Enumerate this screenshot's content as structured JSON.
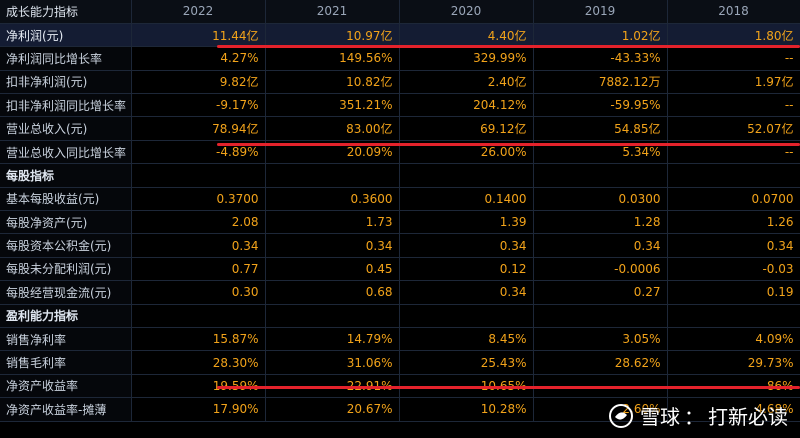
{
  "header": {
    "label": "成长能力指标",
    "years": [
      "2022",
      "2021",
      "2020",
      "2019",
      "2018"
    ]
  },
  "rows": [
    {
      "label": "净利润(元)",
      "values": [
        "11.44亿",
        "10.97亿",
        "4.40亿",
        "1.02亿",
        "1.80亿"
      ],
      "highlight": true
    },
    {
      "label": "净利润同比增长率",
      "values": [
        "4.27%",
        "149.56%",
        "329.99%",
        "-43.33%",
        "--"
      ]
    },
    {
      "label": "扣非净利润(元)",
      "values": [
        "9.82亿",
        "10.82亿",
        "2.40亿",
        "7882.12万",
        "1.97亿"
      ]
    },
    {
      "label": "扣非净利润同比增长率",
      "values": [
        "-9.17%",
        "351.21%",
        "204.12%",
        "-59.95%",
        "--"
      ]
    },
    {
      "label": "营业总收入(元)",
      "values": [
        "78.94亿",
        "83.00亿",
        "69.12亿",
        "54.85亿",
        "52.07亿"
      ]
    },
    {
      "label": "营业总收入同比增长率",
      "values": [
        "-4.89%",
        "20.09%",
        "26.00%",
        "5.34%",
        "--"
      ]
    },
    {
      "label": "每股指标",
      "section": true
    },
    {
      "label": "基本每股收益(元)",
      "values": [
        "0.3700",
        "0.3600",
        "0.1400",
        "0.0300",
        "0.0700"
      ]
    },
    {
      "label": "每股净资产(元)",
      "values": [
        "2.08",
        "1.73",
        "1.39",
        "1.28",
        "1.26"
      ]
    },
    {
      "label": "每股资本公积金(元)",
      "values": [
        "0.34",
        "0.34",
        "0.34",
        "0.34",
        "0.34"
      ]
    },
    {
      "label": "每股未分配利润(元)",
      "values": [
        "0.77",
        "0.45",
        "0.12",
        "-0.0006",
        "-0.03"
      ]
    },
    {
      "label": "每股经营现金流(元)",
      "values": [
        "0.30",
        "0.68",
        "0.34",
        "0.27",
        "0.19"
      ]
    },
    {
      "label": "盈利能力指标",
      "section": true
    },
    {
      "label": "销售净利率",
      "values": [
        "15.87%",
        "14.79%",
        "8.45%",
        "3.05%",
        "4.09%"
      ]
    },
    {
      "label": "销售毛利率",
      "values": [
        "28.30%",
        "31.06%",
        "25.43%",
        "28.62%",
        "29.73%"
      ]
    },
    {
      "label": "净资产收益率",
      "values": [
        "19.59%",
        "22.91%",
        "10.65%",
        "",
        "86%"
      ]
    },
    {
      "label": "净资产收益率-摊薄",
      "values": [
        "17.90%",
        "20.67%",
        "10.28%",
        "2.60%",
        "4.68%"
      ]
    }
  ],
  "watermark": {
    "brand": "雪球",
    "separator": "：",
    "author": "打新必读",
    "icon": "snowball-logo-icon"
  },
  "colors": {
    "value": "#f2a31a",
    "highlight_row": "#141c33",
    "underline": "#e4222b"
  }
}
